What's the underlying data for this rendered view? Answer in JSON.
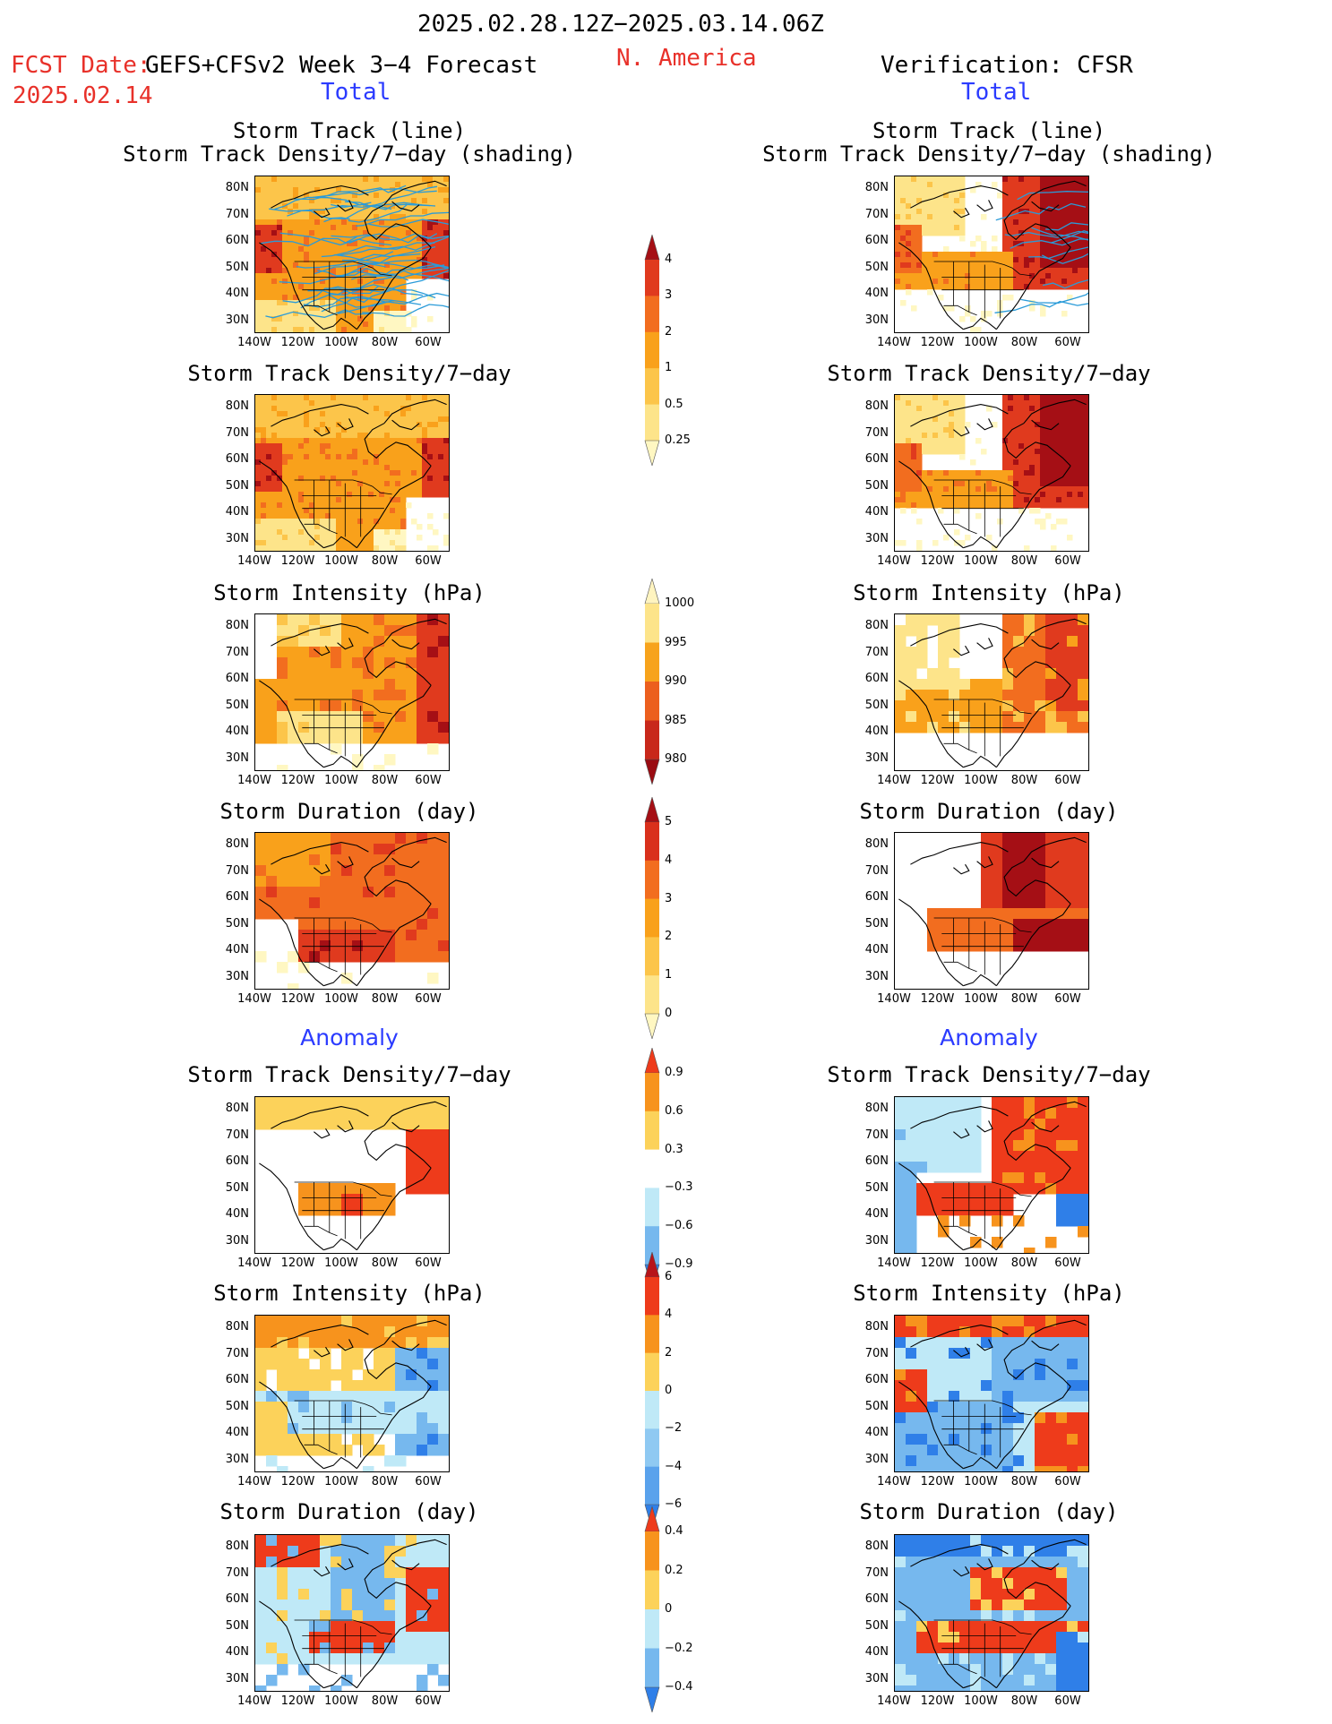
{
  "header": {
    "date_range": "2025.02.28.12Z−2025.03.14.06Z",
    "fcst_label": "FCST Date:",
    "fcst_product": "GEFS+CFSv2 Week 3−4 Forecast",
    "fcst_date": "2025.02.14",
    "region": "N. America",
    "verification": "Verification: CFSR"
  },
  "sections": {
    "total": "Total",
    "anomaly": "Anomaly"
  },
  "axes": {
    "lat_labels": [
      "80N",
      "70N",
      "60N",
      "50N",
      "40N",
      "30N"
    ],
    "lon_labels": [
      "140W",
      "120W",
      "100W",
      "80W",
      "60W"
    ]
  },
  "panels": {
    "storm_track_line": "Storm Track (line)",
    "storm_track_density_shading": "Storm Track Density/7−day (shading)",
    "storm_track_density": "Storm Track Density/7−day",
    "storm_intensity": "Storm Intensity (hPa)",
    "storm_duration": "Storm Duration (day)"
  },
  "colorbars": {
    "density_total": {
      "labels": [
        "4",
        "3",
        "2",
        "1",
        "0.5",
        "0.25"
      ],
      "colors": [
        "#a50f15",
        "#e03a1e",
        "#f26d1f",
        "#f9a11b",
        "#fcc54a",
        "#fde48a",
        "#fff7c2"
      ]
    },
    "intensity_total": {
      "labels": [
        "1000",
        "995",
        "990",
        "985",
        "980"
      ],
      "colors": [
        "#fff4c0",
        "#fde48a",
        "#f7a31c",
        "#ec5f1e",
        "#c8281b",
        "#9a0c12"
      ]
    },
    "duration_total": {
      "labels": [
        "5",
        "4",
        "3",
        "2",
        "1",
        "0"
      ],
      "colors": [
        "#a50f15",
        "#d9301c",
        "#f26d1f",
        "#f9a11b",
        "#fcc54a",
        "#fde48a",
        "#fff7c2"
      ]
    },
    "density_anom": {
      "labels": [
        "0.9",
        "0.6",
        "0.3",
        "−0.3",
        "−0.6",
        "−0.9"
      ],
      "colors": [
        "#ee3b1b",
        "#f7931d",
        "#fcd25a",
        "#ffffff",
        "#bfe9f7",
        "#76b8ee",
        "#2f7fe8"
      ]
    },
    "intensity_anom": {
      "labels": [
        "6",
        "4",
        "2",
        "0",
        "−2",
        "−4",
        "−6"
      ],
      "colors": [
        "#b7141a",
        "#ee3b1b",
        "#f7931d",
        "#fcd25a",
        "#bfe9f7",
        "#8fc9f2",
        "#5aa2ec",
        "#2f7fe8"
      ]
    },
    "duration_anom": {
      "labels": [
        "0.4",
        "0.2",
        "0",
        "−0.2",
        "−0.4"
      ],
      "colors": [
        "#ee3b1b",
        "#f7931d",
        "#fcd25a",
        "#bfe9f7",
        "#76b8ee",
        "#2f7fe8"
      ]
    }
  },
  "colors": {
    "header_red": "#e8312a",
    "header_blue": "#2b3bff",
    "track_line_blue": "#2a9bd8"
  }
}
